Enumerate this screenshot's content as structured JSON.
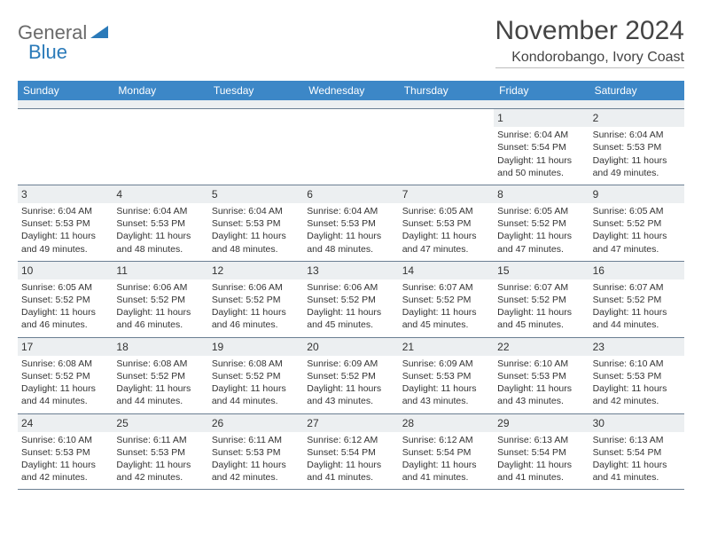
{
  "logo": {
    "text1": "General",
    "text2": "Blue"
  },
  "title": "November 2024",
  "location": "Kondorobango, Ivory Coast",
  "colors": {
    "header_bg": "#3c87c7",
    "header_text": "#ffffff",
    "daynum_bg": "#eceff1",
    "border": "#6b7f93",
    "logo_gray": "#6a6a6a",
    "logo_blue": "#2a7ab9"
  },
  "day_names": [
    "Sunday",
    "Monday",
    "Tuesday",
    "Wednesday",
    "Thursday",
    "Friday",
    "Saturday"
  ],
  "weeks": [
    [
      {
        "n": "",
        "sr": "",
        "ss": "",
        "dl": ""
      },
      {
        "n": "",
        "sr": "",
        "ss": "",
        "dl": ""
      },
      {
        "n": "",
        "sr": "",
        "ss": "",
        "dl": ""
      },
      {
        "n": "",
        "sr": "",
        "ss": "",
        "dl": ""
      },
      {
        "n": "",
        "sr": "",
        "ss": "",
        "dl": ""
      },
      {
        "n": "1",
        "sr": "Sunrise: 6:04 AM",
        "ss": "Sunset: 5:54 PM",
        "dl": "Daylight: 11 hours and 50 minutes."
      },
      {
        "n": "2",
        "sr": "Sunrise: 6:04 AM",
        "ss": "Sunset: 5:53 PM",
        "dl": "Daylight: 11 hours and 49 minutes."
      }
    ],
    [
      {
        "n": "3",
        "sr": "Sunrise: 6:04 AM",
        "ss": "Sunset: 5:53 PM",
        "dl": "Daylight: 11 hours and 49 minutes."
      },
      {
        "n": "4",
        "sr": "Sunrise: 6:04 AM",
        "ss": "Sunset: 5:53 PM",
        "dl": "Daylight: 11 hours and 48 minutes."
      },
      {
        "n": "5",
        "sr": "Sunrise: 6:04 AM",
        "ss": "Sunset: 5:53 PM",
        "dl": "Daylight: 11 hours and 48 minutes."
      },
      {
        "n": "6",
        "sr": "Sunrise: 6:04 AM",
        "ss": "Sunset: 5:53 PM",
        "dl": "Daylight: 11 hours and 48 minutes."
      },
      {
        "n": "7",
        "sr": "Sunrise: 6:05 AM",
        "ss": "Sunset: 5:53 PM",
        "dl": "Daylight: 11 hours and 47 minutes."
      },
      {
        "n": "8",
        "sr": "Sunrise: 6:05 AM",
        "ss": "Sunset: 5:52 PM",
        "dl": "Daylight: 11 hours and 47 minutes."
      },
      {
        "n": "9",
        "sr": "Sunrise: 6:05 AM",
        "ss": "Sunset: 5:52 PM",
        "dl": "Daylight: 11 hours and 47 minutes."
      }
    ],
    [
      {
        "n": "10",
        "sr": "Sunrise: 6:05 AM",
        "ss": "Sunset: 5:52 PM",
        "dl": "Daylight: 11 hours and 46 minutes."
      },
      {
        "n": "11",
        "sr": "Sunrise: 6:06 AM",
        "ss": "Sunset: 5:52 PM",
        "dl": "Daylight: 11 hours and 46 minutes."
      },
      {
        "n": "12",
        "sr": "Sunrise: 6:06 AM",
        "ss": "Sunset: 5:52 PM",
        "dl": "Daylight: 11 hours and 46 minutes."
      },
      {
        "n": "13",
        "sr": "Sunrise: 6:06 AM",
        "ss": "Sunset: 5:52 PM",
        "dl": "Daylight: 11 hours and 45 minutes."
      },
      {
        "n": "14",
        "sr": "Sunrise: 6:07 AM",
        "ss": "Sunset: 5:52 PM",
        "dl": "Daylight: 11 hours and 45 minutes."
      },
      {
        "n": "15",
        "sr": "Sunrise: 6:07 AM",
        "ss": "Sunset: 5:52 PM",
        "dl": "Daylight: 11 hours and 45 minutes."
      },
      {
        "n": "16",
        "sr": "Sunrise: 6:07 AM",
        "ss": "Sunset: 5:52 PM",
        "dl": "Daylight: 11 hours and 44 minutes."
      }
    ],
    [
      {
        "n": "17",
        "sr": "Sunrise: 6:08 AM",
        "ss": "Sunset: 5:52 PM",
        "dl": "Daylight: 11 hours and 44 minutes."
      },
      {
        "n": "18",
        "sr": "Sunrise: 6:08 AM",
        "ss": "Sunset: 5:52 PM",
        "dl": "Daylight: 11 hours and 44 minutes."
      },
      {
        "n": "19",
        "sr": "Sunrise: 6:08 AM",
        "ss": "Sunset: 5:52 PM",
        "dl": "Daylight: 11 hours and 44 minutes."
      },
      {
        "n": "20",
        "sr": "Sunrise: 6:09 AM",
        "ss": "Sunset: 5:52 PM",
        "dl": "Daylight: 11 hours and 43 minutes."
      },
      {
        "n": "21",
        "sr": "Sunrise: 6:09 AM",
        "ss": "Sunset: 5:53 PM",
        "dl": "Daylight: 11 hours and 43 minutes."
      },
      {
        "n": "22",
        "sr": "Sunrise: 6:10 AM",
        "ss": "Sunset: 5:53 PM",
        "dl": "Daylight: 11 hours and 43 minutes."
      },
      {
        "n": "23",
        "sr": "Sunrise: 6:10 AM",
        "ss": "Sunset: 5:53 PM",
        "dl": "Daylight: 11 hours and 42 minutes."
      }
    ],
    [
      {
        "n": "24",
        "sr": "Sunrise: 6:10 AM",
        "ss": "Sunset: 5:53 PM",
        "dl": "Daylight: 11 hours and 42 minutes."
      },
      {
        "n": "25",
        "sr": "Sunrise: 6:11 AM",
        "ss": "Sunset: 5:53 PM",
        "dl": "Daylight: 11 hours and 42 minutes."
      },
      {
        "n": "26",
        "sr": "Sunrise: 6:11 AM",
        "ss": "Sunset: 5:53 PM",
        "dl": "Daylight: 11 hours and 42 minutes."
      },
      {
        "n": "27",
        "sr": "Sunrise: 6:12 AM",
        "ss": "Sunset: 5:54 PM",
        "dl": "Daylight: 11 hours and 41 minutes."
      },
      {
        "n": "28",
        "sr": "Sunrise: 6:12 AM",
        "ss": "Sunset: 5:54 PM",
        "dl": "Daylight: 11 hours and 41 minutes."
      },
      {
        "n": "29",
        "sr": "Sunrise: 6:13 AM",
        "ss": "Sunset: 5:54 PM",
        "dl": "Daylight: 11 hours and 41 minutes."
      },
      {
        "n": "30",
        "sr": "Sunrise: 6:13 AM",
        "ss": "Sunset: 5:54 PM",
        "dl": "Daylight: 11 hours and 41 minutes."
      }
    ]
  ]
}
